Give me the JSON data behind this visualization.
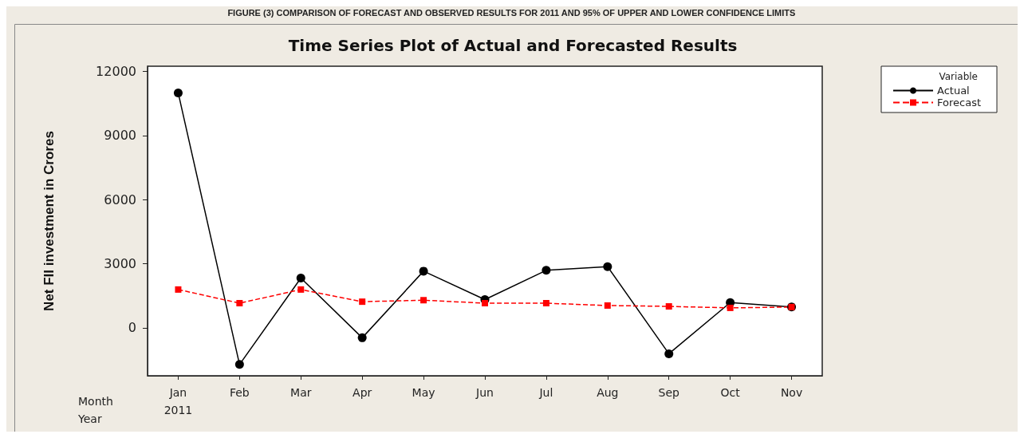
{
  "chart_data": {
    "type": "line",
    "title": "Time Series Plot of Actual and Forecasted Results",
    "annotations": [
      "FIGURE (3) COMPARISON OF FORECAST AND OBSERVED RESULTS FOR 2011 AND 95% OF UPPER AND LOWER CONFIDENCE LIMITS"
    ],
    "ylabel": "Net FII investment in Crores",
    "xlabel": "Month\nYear",
    "legend_title": "Variable",
    "categories": [
      "Jan\n2011",
      "Feb",
      "Mar",
      "Apr",
      "May",
      "Jun",
      "Jul",
      "Aug",
      "Sep",
      "Oct",
      "Nov"
    ],
    "series": [
      {
        "name": "Actual",
        "color": "#000000",
        "marker": "circle",
        "line_style": "solid",
        "values": [
          11000,
          -1720,
          2330,
          -470,
          2650,
          1320,
          2690,
          2860,
          -1220,
          1180,
          970
        ]
      },
      {
        "name": "Forecast",
        "color": "#ff0000",
        "marker": "square",
        "line_style": "dashed",
        "values": [
          1790,
          1150,
          1790,
          1220,
          1290,
          1150,
          1150,
          1040,
          1000,
          930,
          970
        ]
      }
    ],
    "ylim": [
      -2250,
      12250
    ],
    "yticks": [
      0,
      3000,
      6000,
      9000,
      12000
    ],
    "grid": false,
    "legend": "top right"
  }
}
